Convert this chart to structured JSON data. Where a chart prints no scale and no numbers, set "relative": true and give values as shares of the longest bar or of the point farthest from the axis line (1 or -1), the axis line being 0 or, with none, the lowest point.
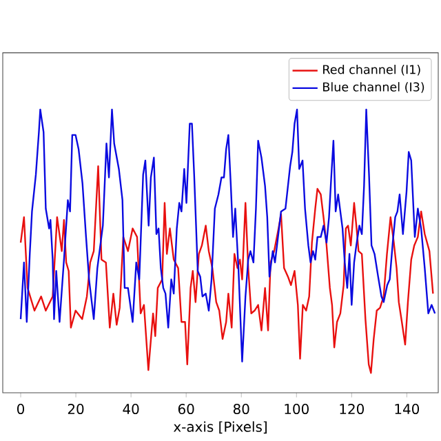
{
  "chart_data": {
    "type": "line",
    "xlabel": "x-axis [Pixels]",
    "relative": true,
    "xlim": [
      -6.5,
      151.4
    ],
    "xticks": [
      0,
      20,
      40,
      60,
      80,
      100,
      120,
      140
    ],
    "legend": "top right",
    "marker": "none",
    "line_style": "solid",
    "series": [
      {
        "name": "Red channel (I1)",
        "color": "#e8100f",
        "x": [
          0,
          1.2,
          2.5,
          5,
          7.4,
          9.1,
          11.6,
          13.2,
          14.9,
          15.7,
          16.5,
          17.4,
          18.2,
          19.9,
          22.3,
          24,
          25.2,
          26.5,
          28.1,
          29.3,
          30.9,
          32.3,
          33.6,
          34.8,
          35.9,
          37.2,
          38.9,
          40.6,
          42.2,
          43.5,
          44.7,
          46.3,
          48.0,
          48.8,
          49.7,
          51.3,
          52.2,
          53.0,
          54.1,
          55.5,
          57.1,
          58.3,
          59.6,
          60.4,
          61.6,
          62.4,
          63.4,
          64.6,
          65.7,
          67.1,
          68.2,
          69.5,
          70.9,
          72.0,
          73.2,
          74.5,
          75.3,
          76.5,
          77.5,
          78.6,
          79.5,
          80.3,
          81.5,
          82.5,
          83.6,
          84.8,
          86.1,
          87.3,
          88.6,
          89.7,
          90.6,
          91.9,
          93.5,
          94.4,
          95.5,
          96.9,
          98.0,
          99.3,
          100.5,
          101.3,
          102.3,
          103.5,
          104.6,
          105.6,
          106.8,
          107.6,
          108.8,
          109.8,
          110.9,
          112.1,
          112.9,
          113.7,
          114.7,
          115.9,
          117.1,
          117.9,
          118.7,
          119.7,
          120.9,
          121.7,
          122.5,
          123.7,
          125.0,
          126.2,
          127.0,
          128.0,
          129.1,
          130.3,
          131.6,
          132.8,
          134.1,
          135.3,
          136.3,
          137.1,
          138.2,
          139.4,
          140.4,
          141.6,
          142.7,
          144.0,
          145.2,
          146.5,
          148.2,
          149.5
        ],
        "values": [
          0.53,
          0.62,
          0.37,
          0.29,
          0.34,
          0.29,
          0.34,
          0.62,
          0.5,
          0.61,
          0.46,
          0.43,
          0.23,
          0.29,
          0.26,
          0.34,
          0.46,
          0.5,
          0.8,
          0.47,
          0.46,
          0.23,
          0.35,
          0.24,
          0.3,
          0.55,
          0.5,
          0.58,
          0.55,
          0.28,
          0.31,
          0.08,
          0.28,
          0.2,
          0.37,
          0.4,
          0.67,
          0.49,
          0.58,
          0.47,
          0.44,
          0.25,
          0.25,
          0.1,
          0.37,
          0.43,
          0.32,
          0.49,
          0.52,
          0.59,
          0.5,
          0.44,
          0.32,
          0.29,
          0.19,
          0.25,
          0.35,
          0.23,
          0.49,
          0.44,
          0.47,
          0.4,
          0.67,
          0.44,
          0.28,
          0.29,
          0.31,
          0.22,
          0.37,
          0.22,
          0.46,
          0.5,
          0.58,
          0.63,
          0.44,
          0.41,
          0.38,
          0.43,
          0.31,
          0.12,
          0.31,
          0.29,
          0.34,
          0.53,
          0.65,
          0.72,
          0.7,
          0.62,
          0.52,
          0.37,
          0.31,
          0.16,
          0.25,
          0.28,
          0.38,
          0.58,
          0.59,
          0.52,
          0.67,
          0.59,
          0.5,
          0.49,
          0.26,
          0.1,
          0.07,
          0.19,
          0.29,
          0.3,
          0.34,
          0.49,
          0.62,
          0.53,
          0.44,
          0.32,
          0.25,
          0.17,
          0.32,
          0.47,
          0.52,
          0.55,
          0.64,
          0.56,
          0.5,
          0.35
        ]
      },
      {
        "name": "Blue channel (I3)",
        "color": "#0a0ae0",
        "x": [
          0,
          1.2,
          2.2,
          3.3,
          4.1,
          5.5,
          6.6,
          7.1,
          8.3,
          9.1,
          10.3,
          10.8,
          11.6,
          12.1,
          12.9,
          14.1,
          15.7,
          17.1,
          17.9,
          18.7,
          19.9,
          21.0,
          22.4,
          23.7,
          24.8,
          26.5,
          27.8,
          29.8,
          31.1,
          32.0,
          33.1,
          33.9,
          35.6,
          36.9,
          37.7,
          38.9,
          40.6,
          41.9,
          43.0,
          44.4,
          45.2,
          46.4,
          47.2,
          48.3,
          49.2,
          50.0,
          50.8,
          51.7,
          52.5,
          53.5,
          54.6,
          55.5,
          56.6,
          57.5,
          58.3,
          59.3,
          60.1,
          61.3,
          62.1,
          62.9,
          64.2,
          65.1,
          65.9,
          67.1,
          68.2,
          69.2,
          70.4,
          71.7,
          72.8,
          73.7,
          74.5,
          75.3,
          76.2,
          77.0,
          77.8,
          79.0,
          80.3,
          81.5,
          82.5,
          83.3,
          84.4,
          85.3,
          86.1,
          87.3,
          88.6,
          89.4,
          90.2,
          91.4,
          92.2,
          94.4,
          96.0,
          97.7,
          98.5,
          99.3,
          100.2,
          101.0,
          102.2,
          103.1,
          104.3,
          105.1,
          106.0,
          106.8,
          107.6,
          108.8,
          109.8,
          110.9,
          111.8,
          112.6,
          113.4,
          114.2,
          115.1,
          115.9,
          116.7,
          117.5,
          118.4,
          119.2,
          120.0,
          120.9,
          121.7,
          122.8,
          123.7,
          124.5,
          125.3,
          126.3,
          127.2,
          128.3,
          129.6,
          130.8,
          131.6,
          132.9,
          133.8,
          134.9,
          135.8,
          136.6,
          137.4,
          138.6,
          139.9,
          140.7,
          141.6,
          142.9,
          144.0,
          145.2,
          146.5,
          147.8,
          149.0,
          150.2
        ],
        "values": [
          0.26,
          0.46,
          0.25,
          0.49,
          0.64,
          0.77,
          0.92,
          1.0,
          0.92,
          0.65,
          0.58,
          0.61,
          0.47,
          0.26,
          0.43,
          0.25,
          0.47,
          0.68,
          0.64,
          0.91,
          0.91,
          0.86,
          0.74,
          0.55,
          0.4,
          0.26,
          0.44,
          0.59,
          0.88,
          0.76,
          1.0,
          0.88,
          0.79,
          0.68,
          0.37,
          0.37,
          0.25,
          0.46,
          0.4,
          0.77,
          0.82,
          0.59,
          0.76,
          0.83,
          0.56,
          0.58,
          0.44,
          0.37,
          0.35,
          0.23,
          0.4,
          0.35,
          0.58,
          0.67,
          0.64,
          0.79,
          0.67,
          0.95,
          0.95,
          0.77,
          0.43,
          0.41,
          0.34,
          0.35,
          0.29,
          0.4,
          0.65,
          0.7,
          0.76,
          0.76,
          0.86,
          0.91,
          0.73,
          0.55,
          0.65,
          0.43,
          0.11,
          0.34,
          0.47,
          0.5,
          0.46,
          0.65,
          0.89,
          0.83,
          0.73,
          0.62,
          0.41,
          0.5,
          0.46,
          0.64,
          0.65,
          0.8,
          0.85,
          0.95,
          1.0,
          0.79,
          0.82,
          0.65,
          0.52,
          0.46,
          0.5,
          0.47,
          0.55,
          0.55,
          0.59,
          0.53,
          0.62,
          0.76,
          0.89,
          0.64,
          0.7,
          0.64,
          0.58,
          0.46,
          0.37,
          0.49,
          0.31,
          0.46,
          0.52,
          0.59,
          0.56,
          0.73,
          1.0,
          0.77,
          0.52,
          0.49,
          0.41,
          0.34,
          0.32,
          0.38,
          0.4,
          0.53,
          0.62,
          0.64,
          0.7,
          0.56,
          0.71,
          0.85,
          0.82,
          0.55,
          0.65,
          0.58,
          0.44,
          0.28,
          0.31,
          0.28
        ]
      }
    ]
  }
}
